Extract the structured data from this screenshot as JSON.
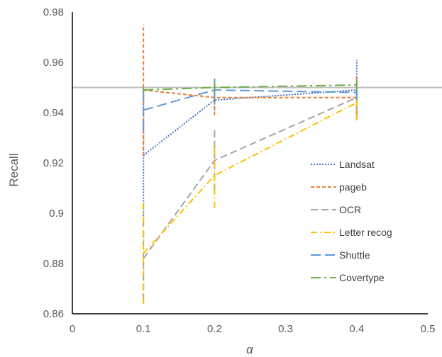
{
  "chart_data": {
    "type": "line",
    "xlabel": "α",
    "ylabel": "Recall",
    "xlim": [
      0,
      0.5
    ],
    "ylim": [
      0.86,
      0.98
    ],
    "x_ticks": [
      "0",
      "0.1",
      "0.2",
      "0.3",
      "0.4",
      "0.5"
    ],
    "y_ticks": [
      "0.86",
      "0.88",
      "0.9",
      "0.92",
      "0.94",
      "0.96",
      "0.98"
    ],
    "x": [
      0.1,
      0.2,
      0.4
    ],
    "reference_line": {
      "y": 0.95,
      "color": "#bfbfbf"
    },
    "legend_position": "right",
    "series": [
      {
        "name": "Landsat",
        "color": "#4472c4",
        "dash": "dotted",
        "values": [
          0.923,
          0.945,
          0.949
        ],
        "err_low": [
          0.899,
          0.941,
          0.937
        ],
        "err_high": [
          0.947,
          0.949,
          0.961
        ]
      },
      {
        "name": "pageb",
        "color": "#ed7d31",
        "dash": "dashed",
        "values": [
          0.949,
          0.946,
          0.946
        ],
        "err_low": [
          0.923,
          0.939,
          0.937
        ],
        "err_high": [
          0.975,
          0.953,
          0.955
        ]
      },
      {
        "name": "OCR",
        "color": "#a5a5a5",
        "dash": "longdash",
        "values": [
          0.882,
          0.921,
          0.946
        ],
        "err_low": [
          0.865,
          0.909,
          0.941
        ],
        "err_high": [
          0.899,
          0.933,
          0.951
        ]
      },
      {
        "name": "Letter recog",
        "color": "#ffc000",
        "dash": "dashdot",
        "values": [
          0.884,
          0.915,
          0.944
        ],
        "err_low": [
          0.864,
          0.902,
          0.937
        ],
        "err_high": [
          0.904,
          0.928,
          0.951
        ]
      },
      {
        "name": "Shuttle",
        "color": "#5b9bd5",
        "dash": "longdashgap",
        "values": [
          0.941,
          0.949,
          0.948
        ],
        "err_low": [
          0.933,
          0.944,
          0.945
        ],
        "err_high": [
          0.949,
          0.954,
          0.951
        ]
      },
      {
        "name": "Covertype",
        "color": "#70ad47",
        "dash": "longdashdot",
        "values": [
          0.949,
          0.95,
          0.951
        ],
        "err_low": [
          0.948,
          0.948,
          0.949
        ],
        "err_high": [
          0.95,
          0.952,
          0.953
        ]
      }
    ]
  }
}
